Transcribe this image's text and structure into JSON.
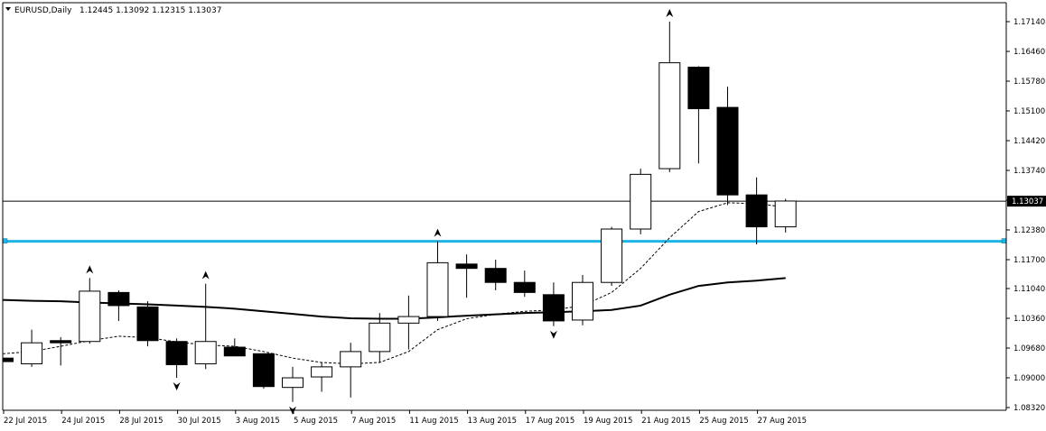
{
  "header": {
    "symbol": "EURUSD,Daily",
    "ohlc": "1.12445 1.13092 1.12315 1.13037"
  },
  "colors": {
    "background": "#ffffff",
    "axis": "#000000",
    "bull_fill": "#ffffff",
    "bear_fill": "#000000",
    "support_line": "#1eb4e6",
    "ma_slow": "#000000",
    "ma_fast": "#000000"
  },
  "chart_data": {
    "type": "candlestick",
    "y_axis_ticks": [
      "1.17140",
      "1.16460",
      "1.15780",
      "1.15100",
      "1.14420",
      "1.13740",
      "1.13060",
      "1.12380",
      "1.11700",
      "1.11040",
      "1.10360",
      "1.09680",
      "1.09000",
      "1.08320"
    ],
    "x_axis_ticks": [
      "22 Jul 2015",
      "24 Jul 2015",
      "28 Jul 2015",
      "30 Jul 2015",
      "3 Aug 2015",
      "5 Aug 2015",
      "7 Aug 2015",
      "11 Aug 2015",
      "13 Aug 2015",
      "17 Aug 2015",
      "19 Aug 2015",
      "21 Aug 2015",
      "25 Aug 2015",
      "27 Aug 2015"
    ],
    "ylim": [
      1.0832,
      1.1782
    ],
    "current_price": "1.13037",
    "support_level": 1.1212,
    "candles": [
      {
        "date": "21 Jul 2015",
        "open": 1.0945,
        "high": 1.098,
        "low": 1.087,
        "close": 1.0937
      },
      {
        "date": "22 Jul 2015",
        "open": 1.0932,
        "high": 1.101,
        "low": 1.0925,
        "close": 1.098
      },
      {
        "date": "23 Jul 2015",
        "open": 1.0985,
        "high": 1.0993,
        "low": 1.0928,
        "close": 1.098
      },
      {
        "date": "24 Jul 2015",
        "open": 1.0983,
        "high": 1.1128,
        "low": 1.0978,
        "close": 1.1098
      },
      {
        "date": "27 Jul 2015",
        "open": 1.1095,
        "high": 1.11,
        "low": 1.103,
        "close": 1.1065
      },
      {
        "date": "28 Jul 2015",
        "open": 1.1062,
        "high": 1.1075,
        "low": 1.0972,
        "close": 1.0985
      },
      {
        "date": "29 Jul 2015",
        "open": 1.0983,
        "high": 1.099,
        "low": 1.09,
        "close": 1.093
      },
      {
        "date": "30 Jul 2015",
        "open": 1.0932,
        "high": 1.1115,
        "low": 1.092,
        "close": 1.0983
      },
      {
        "date": "31 Jul 2015",
        "open": 1.097,
        "high": 1.099,
        "low": 1.095,
        "close": 1.095
      },
      {
        "date": "3 Aug 2015",
        "open": 1.0955,
        "high": 1.0956,
        "low": 1.0875,
        "close": 1.088
      },
      {
        "date": "4 Aug 2015",
        "open": 1.0878,
        "high": 1.0925,
        "low": 1.0845,
        "close": 1.09
      },
      {
        "date": "5 Aug 2015",
        "open": 1.0902,
        "high": 1.0935,
        "low": 1.0868,
        "close": 1.0925
      },
      {
        "date": "6 Aug 2015",
        "open": 1.0925,
        "high": 1.098,
        "low": 1.0855,
        "close": 1.096
      },
      {
        "date": "7 Aug 2015",
        "open": 1.096,
        "high": 1.1048,
        "low": 1.0935,
        "close": 1.1025
      },
      {
        "date": "10 Aug 2015",
        "open": 1.1025,
        "high": 1.1088,
        "low": 1.0965,
        "close": 1.104
      },
      {
        "date": "11 Aug 2015",
        "open": 1.104,
        "high": 1.1212,
        "low": 1.103,
        "close": 1.1163
      },
      {
        "date": "12 Aug 2015",
        "open": 1.116,
        "high": 1.1182,
        "low": 1.1083,
        "close": 1.115
      },
      {
        "date": "13 Aug 2015",
        "open": 1.115,
        "high": 1.117,
        "low": 1.11,
        "close": 1.1118
      },
      {
        "date": "14 Aug 2015",
        "open": 1.1118,
        "high": 1.1145,
        "low": 1.1085,
        "close": 1.1095
      },
      {
        "date": "17 Aug 2015",
        "open": 1.109,
        "high": 1.1118,
        "low": 1.1018,
        "close": 1.103
      },
      {
        "date": "18 Aug 2015",
        "open": 1.1032,
        "high": 1.1135,
        "low": 1.102,
        "close": 1.1118
      },
      {
        "date": "19 Aug 2015",
        "open": 1.1118,
        "high": 1.1245,
        "low": 1.111,
        "close": 1.124
      },
      {
        "date": "20 Aug 2015",
        "open": 1.124,
        "high": 1.1378,
        "low": 1.1228,
        "close": 1.1365
      },
      {
        "date": "21 Aug 2015",
        "open": 1.1378,
        "high": 1.1714,
        "low": 1.137,
        "close": 1.162
      },
      {
        "date": "24 Aug 2015",
        "open": 1.161,
        "high": 1.1612,
        "low": 1.139,
        "close": 1.1515
      },
      {
        "date": "25 Aug 2015",
        "open": 1.1518,
        "high": 1.1565,
        "low": 1.1295,
        "close": 1.1318
      },
      {
        "date": "26 Aug 2015",
        "open": 1.1318,
        "high": 1.1358,
        "low": 1.1205,
        "close": 1.1245
      },
      {
        "date": "27 Aug 2015",
        "open": 1.1245,
        "high": 1.1309,
        "low": 1.1232,
        "close": 1.1304
      }
    ],
    "ma_slow": [
      1.1078,
      1.1076,
      1.1075,
      1.1072,
      1.107,
      1.1068,
      1.1065,
      1.1062,
      1.1058,
      1.1052,
      1.1046,
      1.104,
      1.1036,
      1.1035,
      1.1035,
      1.1038,
      1.1042,
      1.1045,
      1.1048,
      1.105,
      1.1052,
      1.1055,
      1.1065,
      1.109,
      1.111,
      1.1118,
      1.1122,
      1.1128
    ],
    "ma_fast": [
      1.0955,
      1.096,
      1.0972,
      1.0985,
      1.0995,
      1.0992,
      1.0982,
      1.0975,
      1.0972,
      1.096,
      1.0945,
      1.0935,
      1.0932,
      1.0935,
      1.096,
      1.101,
      1.1035,
      1.1045,
      1.1052,
      1.1055,
      1.1065,
      1.1095,
      1.115,
      1.122,
      1.128,
      1.13,
      1.1298,
      1.129
    ],
    "fractals": [
      {
        "index": 3,
        "type": "up",
        "price": 1.1128
      },
      {
        "index": 7,
        "type": "up",
        "price": 1.1115
      },
      {
        "index": 15,
        "type": "up",
        "price": 1.1212
      },
      {
        "index": 23,
        "type": "up",
        "price": 1.1714
      },
      {
        "index": 6,
        "type": "down",
        "price": 1.09
      },
      {
        "index": 10,
        "type": "down",
        "price": 1.0845
      },
      {
        "index": 19,
        "type": "down",
        "price": 1.1018
      }
    ]
  }
}
